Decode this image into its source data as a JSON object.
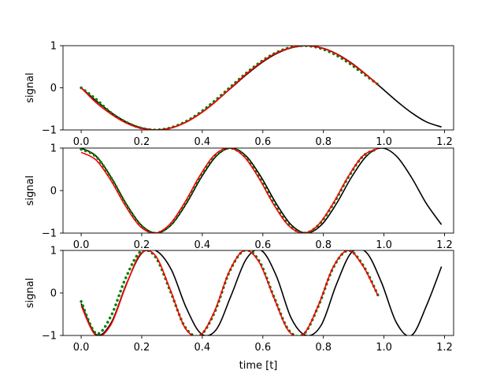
{
  "chart_data": [
    {
      "type": "line",
      "ylabel": "signal",
      "xlabel": "",
      "xlim": [
        -0.06,
        1.23
      ],
      "ylim": [
        -1,
        1
      ],
      "xticks": [
        "0.0",
        "0.2",
        "0.4",
        "0.6",
        "0.8",
        "1.0",
        "1.2"
      ],
      "yticks": [
        "−1",
        "0",
        "1"
      ],
      "series": [
        {
          "color": "#000000",
          "style": "solid",
          "width": 1.6,
          "x_range": [
            0,
            1.19
          ],
          "y": [
            0.0,
            -0.31,
            -0.59,
            -0.81,
            -0.95,
            -1.0,
            -0.95,
            -0.81,
            -0.59,
            -0.31,
            0.0,
            0.31,
            0.59,
            0.81,
            0.95,
            1.0,
            0.95,
            0.81,
            0.59,
            0.31,
            0.0,
            -0.31,
            -0.59,
            -0.81,
            -0.93
          ]
        },
        {
          "color": "#008000",
          "style": "dotted",
          "width": 3.5,
          "x_range": [
            0,
            0.98
          ],
          "y": [
            0.0,
            -0.27,
            -0.59,
            -0.81,
            -0.95,
            -1.0,
            -0.95,
            -0.81,
            -0.59,
            -0.31,
            0.0,
            0.31,
            0.59,
            0.81,
            0.95,
            1.0,
            0.95,
            0.81,
            0.6,
            0.34,
            0.08
          ]
        },
        {
          "color": "#ff0000",
          "style": "solid",
          "width": 1.6,
          "x_range": [
            0,
            0.98
          ],
          "y": [
            0.0,
            -0.35,
            -0.62,
            -0.83,
            -0.96,
            -1.0,
            -0.96,
            -0.83,
            -0.62,
            -0.35,
            -0.03,
            0.29,
            0.57,
            0.8,
            0.94,
            1.0,
            0.96,
            0.84,
            0.63,
            0.37,
            0.07
          ]
        }
      ]
    },
    {
      "type": "line",
      "ylabel": "signal",
      "xlabel": "",
      "xlim": [
        -0.06,
        1.23
      ],
      "ylim": [
        -1,
        1
      ],
      "xticks": [
        "0.0",
        "0.2",
        "0.4",
        "0.6",
        "0.8",
        "1.0",
        "1.2"
      ],
      "yticks": [
        "−1",
        "0",
        "1"
      ],
      "series": [
        {
          "color": "#000000",
          "style": "solid",
          "width": 1.6,
          "x_range": [
            0,
            1.19
          ],
          "y": [
            1.0,
            0.81,
            0.31,
            -0.31,
            -0.81,
            -1.0,
            -0.81,
            -0.31,
            0.31,
            0.81,
            1.0,
            0.81,
            0.31,
            -0.31,
            -0.81,
            -1.0,
            -0.81,
            -0.31,
            0.31,
            0.81,
            1.0,
            0.81,
            0.31,
            -0.31,
            -0.8
          ]
        },
        {
          "color": "#008000",
          "style": "dotted",
          "width": 3.5,
          "x_range": [
            0,
            0.98
          ],
          "y": [
            0.97,
            0.8,
            0.31,
            -0.31,
            -0.81,
            -1.0,
            -0.81,
            -0.31,
            0.31,
            0.81,
            1.0,
            0.81,
            0.31,
            -0.31,
            -0.81,
            -1.0,
            -0.81,
            -0.31,
            0.31,
            0.81,
            0.98
          ]
        },
        {
          "color": "#ff0000",
          "style": "solid",
          "width": 1.6,
          "x_range": [
            0,
            0.98
          ],
          "y": [
            0.9,
            0.72,
            0.24,
            -0.37,
            -0.85,
            -1.0,
            -0.78,
            -0.27,
            0.35,
            0.84,
            1.0,
            0.79,
            0.28,
            -0.34,
            -0.83,
            -1.0,
            -0.8,
            -0.29,
            0.33,
            0.82,
            0.99
          ]
        }
      ]
    },
    {
      "type": "line",
      "ylabel": "signal",
      "xlabel": "time [t]",
      "xlim": [
        -0.06,
        1.23
      ],
      "ylim": [
        -1,
        1
      ],
      "xticks": [
        "0.0",
        "0.2",
        "0.4",
        "0.6",
        "0.8",
        "1.0",
        "1.2"
      ],
      "yticks": [
        "−1",
        "0",
        "1"
      ],
      "series": [
        {
          "color": "#000000",
          "style": "solid",
          "width": 1.6,
          "x_range": [
            0,
            1.19
          ],
          "y": [
            -0.25,
            -0.98,
            -0.7,
            0.2,
            0.92,
            0.99,
            0.55,
            -0.35,
            -0.96,
            -0.86,
            -0.05,
            0.8,
            1.0,
            0.4,
            -0.6,
            -1.0,
            -0.75,
            0.2,
            0.95,
            0.95,
            0.25,
            -0.7,
            -1.0,
            -0.3,
            0.62
          ]
        },
        {
          "color": "#008000",
          "style": "dotted",
          "width": 3.5,
          "x_range": [
            0,
            0.98
          ],
          "y": [
            -0.2,
            -0.95,
            -0.55,
            0.35,
            0.97,
            0.85,
            0.05,
            -0.8,
            -1.0,
            -0.45,
            0.5,
            1.0,
            0.75,
            -0.1,
            -0.88,
            -0.97,
            -0.3,
            0.6,
            1.0,
            0.65,
            -0.05
          ]
        },
        {
          "color": "#ff0000",
          "style": "solid",
          "width": 1.6,
          "x_range": [
            0,
            0.98
          ],
          "y": [
            -0.3,
            -1.0,
            -0.75,
            0.15,
            0.92,
            0.88,
            0.08,
            -0.82,
            -1.0,
            -0.42,
            0.52,
            1.0,
            0.72,
            -0.12,
            -0.9,
            -0.96,
            -0.28,
            0.62,
            1.0,
            0.63,
            -0.06
          ]
        }
      ]
    }
  ]
}
